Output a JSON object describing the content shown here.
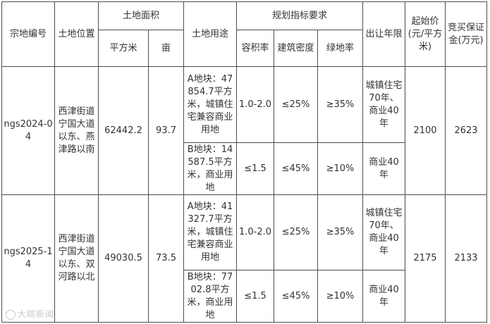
{
  "header": {
    "parcel_no": "宗地编号",
    "location": "土地位置",
    "area": "土地面积",
    "sqm": "平方米",
    "mu": "亩",
    "use": "土地用途",
    "planning": "规划指标要求",
    "far": "容积率",
    "density": "建筑密度",
    "green": "绿地率",
    "term": "出让年限",
    "start_price": "起始价(元/平方米)",
    "deposit": "竞买保证金(万元)"
  },
  "rows": [
    {
      "parcel_no": "ngs2024-04",
      "location": "西津街道宁国大道以东、燕津路以南",
      "area_sqm": "62442.2",
      "area_mu": "93.7",
      "start_price": "2100",
      "deposit": "2623",
      "plots": [
        {
          "use": "A地块：47854.7平方米，城镇住宅兼容商业用地",
          "far": "1.0-2.0",
          "density": "≤25%",
          "green": "≥35%",
          "term": "城镇住宅70年、商业40年"
        },
        {
          "use": "B地块：14587.5平方米，商业用地",
          "far": "≤1.5",
          "density": "≤45%",
          "green": "≥10%",
          "term": "商业40年"
        }
      ]
    },
    {
      "parcel_no": "ngs2025-14",
      "location": "西津街道宁国大道以东、双河路以北",
      "area_sqm": "49030.5",
      "area_mu": "73.5",
      "start_price": "2175",
      "deposit": "2133",
      "plots": [
        {
          "use": "A地块：41327.7平方米，城镇住宅兼容商业用地",
          "far": "1.0-2.0",
          "density": "≤25%",
          "green": "≥35%",
          "term": "城镇住宅70年、商业40年"
        },
        {
          "use": "B地块：7702.8平方米，商业用地",
          "far": "≤1.5",
          "density": "≤45%",
          "green": "≥10%",
          "term": "商业40年"
        }
      ]
    }
  ],
  "watermark": "大皖新闻"
}
